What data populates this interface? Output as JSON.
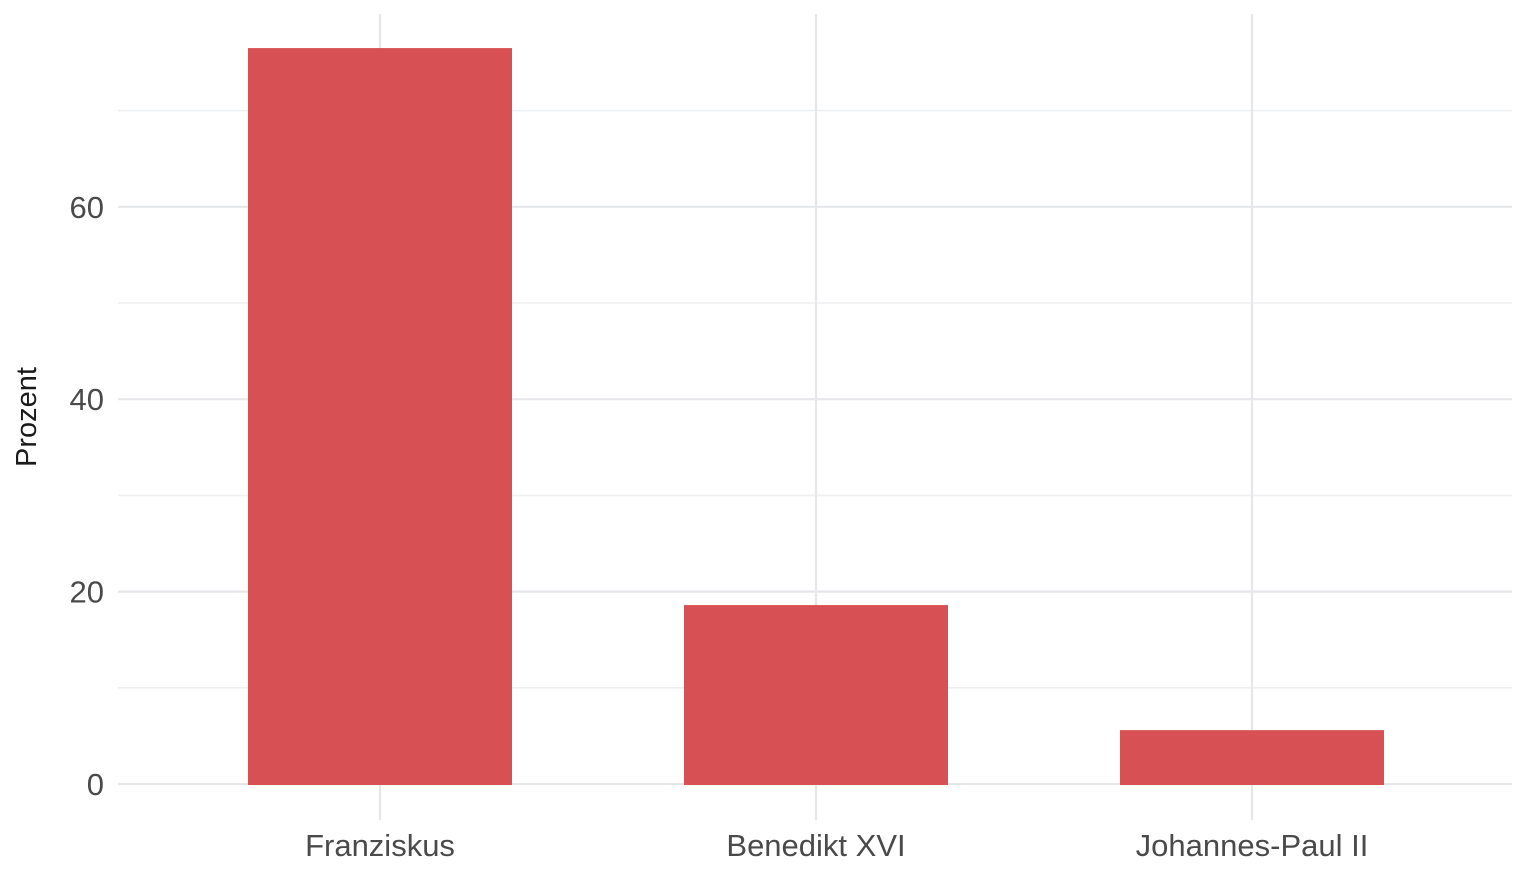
{
  "chart_data": {
    "type": "bar",
    "title": "",
    "xlabel": "",
    "ylabel": "Prozent",
    "categories": [
      "Franziskus",
      "Benedikt XVI",
      "Johannes-Paul II"
    ],
    "values": [
      76.5,
      18.6,
      5.6
    ],
    "ylim": [
      0,
      80
    ],
    "yticks": [
      "0",
      "20",
      "40",
      "60"
    ],
    "grid": true,
    "legend": "none",
    "bar_color": "#d75053",
    "grid_color": "#e6e7ea"
  }
}
